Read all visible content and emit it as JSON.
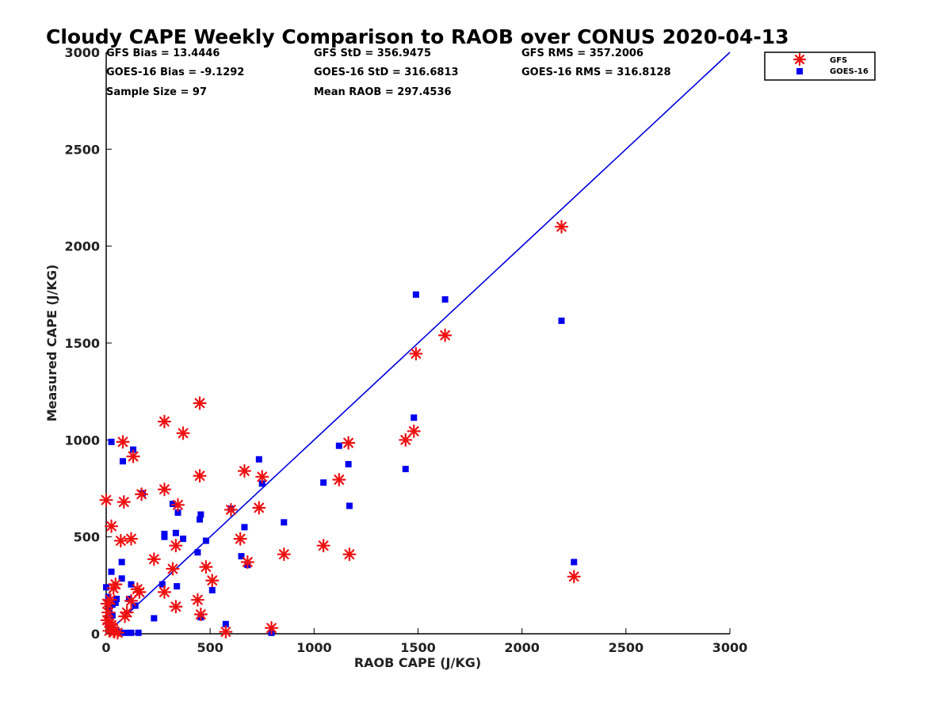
{
  "chart_data": {
    "type": "scatter",
    "title": "Cloudy CAPE Weekly Comparison to RAOB over CONUS 2020-04-13",
    "xlabel": "RAOB CAPE (J/KG)",
    "ylabel": "Measured CAPE (J/KG)",
    "xlim": [
      0,
      3000
    ],
    "ylim": [
      0,
      3000
    ],
    "x_ticks": [
      "0",
      "500",
      "1000",
      "1500",
      "2000",
      "2500",
      "3000"
    ],
    "y_ticks": [
      "0",
      "500",
      "1000",
      "1500",
      "2000",
      "2500",
      "3000"
    ],
    "grid": false,
    "legend_position": "top-right",
    "reference_line": {
      "from": [
        0,
        0
      ],
      "to": [
        3000,
        3000
      ],
      "color": "#0000dd"
    },
    "stats": [
      [
        "GFS Bias = 13.4446",
        "GFS StD = 356.9475",
        "GFS RMS = 357.2006"
      ],
      [
        "GOES-16 Bias = -9.1292",
        "GOES-16 StD = 316.6813",
        "GOES-16 RMS = 316.8128"
      ],
      [
        "Sample Size = 97",
        "Mean RAOB = 297.4536",
        ""
      ]
    ],
    "series": [
      {
        "name": "GFS",
        "marker": "asterisk",
        "color": "#ee1111",
        "points": [
          [
            0,
            690
          ],
          [
            25,
            555
          ],
          [
            35,
            235
          ],
          [
            45,
            255
          ],
          [
            20,
            175
          ],
          [
            5,
            155
          ],
          [
            10,
            110
          ],
          [
            5,
            70
          ],
          [
            15,
            55
          ],
          [
            25,
            45
          ],
          [
            30,
            30
          ],
          [
            15,
            15
          ],
          [
            40,
            10
          ],
          [
            55,
            5
          ],
          [
            70,
            480
          ],
          [
            80,
            990
          ],
          [
            85,
            680
          ],
          [
            90,
            90
          ],
          [
            100,
            110
          ],
          [
            120,
            490
          ],
          [
            120,
            170
          ],
          [
            130,
            915
          ],
          [
            150,
            230
          ],
          [
            160,
            215
          ],
          [
            170,
            720
          ],
          [
            230,
            385
          ],
          [
            280,
            215
          ],
          [
            280,
            1095
          ],
          [
            280,
            745
          ],
          [
            320,
            335
          ],
          [
            335,
            455
          ],
          [
            335,
            140
          ],
          [
            345,
            665
          ],
          [
            370,
            1035
          ],
          [
            440,
            175
          ],
          [
            450,
            1190
          ],
          [
            450,
            815
          ],
          [
            455,
            100
          ],
          [
            480,
            345
          ],
          [
            510,
            275
          ],
          [
            575,
            10
          ],
          [
            600,
            640
          ],
          [
            645,
            490
          ],
          [
            665,
            840
          ],
          [
            680,
            370
          ],
          [
            735,
            650
          ],
          [
            750,
            810
          ],
          [
            795,
            30
          ],
          [
            855,
            410
          ],
          [
            1045,
            455
          ],
          [
            1120,
            795
          ],
          [
            1165,
            985
          ],
          [
            1170,
            410
          ],
          [
            1440,
            1000
          ],
          [
            1480,
            1045
          ],
          [
            1490,
            1445
          ],
          [
            1630,
            1540
          ],
          [
            2190,
            2100
          ],
          [
            2250,
            295
          ]
        ]
      },
      {
        "name": "GOES-16",
        "marker": "square",
        "color": "#0000ee",
        "points": [
          [
            25,
            990
          ],
          [
            80,
            890
          ],
          [
            130,
            950
          ],
          [
            175,
            725
          ],
          [
            320,
            670
          ],
          [
            345,
            625
          ],
          [
            280,
            515
          ],
          [
            335,
            520
          ],
          [
            370,
            490
          ],
          [
            280,
            500
          ],
          [
            450,
            590
          ],
          [
            455,
            615
          ],
          [
            480,
            480
          ],
          [
            440,
            420
          ],
          [
            600,
            645
          ],
          [
            665,
            550
          ],
          [
            650,
            400
          ],
          [
            680,
            355
          ],
          [
            735,
            900
          ],
          [
            750,
            775
          ],
          [
            855,
            575
          ],
          [
            1045,
            780
          ],
          [
            1120,
            970
          ],
          [
            1165,
            875
          ],
          [
            1170,
            660
          ],
          [
            1440,
            850
          ],
          [
            1480,
            1115
          ],
          [
            1490,
            1750
          ],
          [
            1630,
            1725
          ],
          [
            2190,
            1615
          ],
          [
            2250,
            370
          ],
          [
            0,
            240
          ],
          [
            25,
            320
          ],
          [
            75,
            370
          ],
          [
            75,
            285
          ],
          [
            120,
            255
          ],
          [
            10,
            190
          ],
          [
            30,
            150
          ],
          [
            45,
            160
          ],
          [
            50,
            180
          ],
          [
            110,
            180
          ],
          [
            140,
            145
          ],
          [
            15,
            120
          ],
          [
            270,
            255
          ],
          [
            340,
            245
          ],
          [
            510,
            225
          ],
          [
            30,
            95
          ],
          [
            230,
            80
          ],
          [
            455,
            85
          ],
          [
            575,
            50
          ],
          [
            10,
            50
          ],
          [
            20,
            30
          ],
          [
            40,
            20
          ],
          [
            60,
            10
          ],
          [
            90,
            5
          ],
          [
            120,
            5
          ],
          [
            155,
            5
          ],
          [
            795,
            5
          ]
        ]
      }
    ]
  }
}
